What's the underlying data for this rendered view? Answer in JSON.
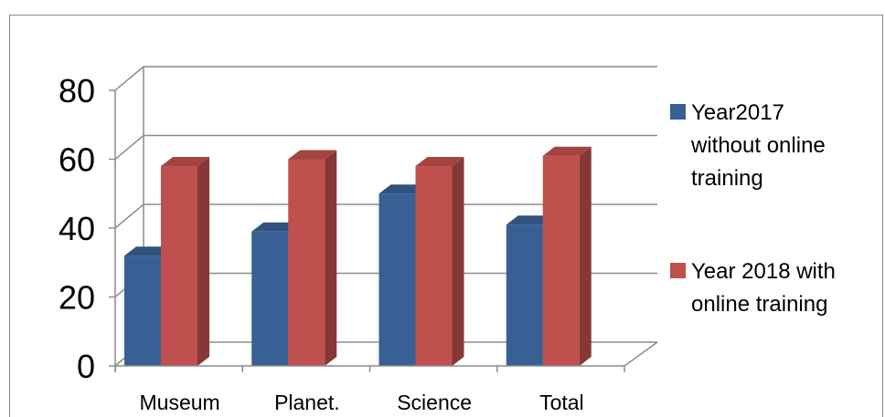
{
  "chart_data": {
    "type": "bar",
    "categories": [
      "Museum",
      "Planet.",
      "Science",
      "Total"
    ],
    "series": [
      {
        "name": "Year2017 without online training",
        "values": [
          32,
          39,
          50,
          41
        ],
        "color": "#386094"
      },
      {
        "name": "Year 2018 with online training",
        "values": [
          58,
          60,
          58,
          61
        ],
        "color": "#c0504d"
      }
    ],
    "yticks": [
      "0",
      "20",
      "40",
      "60",
      "80"
    ],
    "ylim": [
      0,
      80
    ],
    "grid": true,
    "legend": {
      "placement": "right",
      "entries": [
        {
          "lines": [
            "Year2017",
            "without online",
            "training"
          ]
        },
        {
          "lines": [
            "Year 2018 with",
            "online training"
          ]
        }
      ]
    },
    "style": "3d-clustered-column"
  }
}
